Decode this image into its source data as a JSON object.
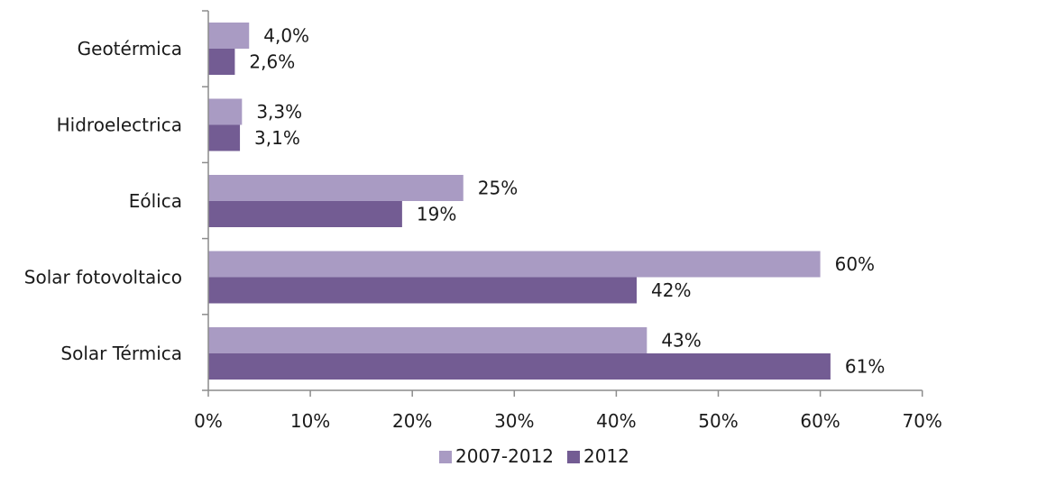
{
  "chart_data": {
    "type": "bar",
    "orientation": "horizontal",
    "title": "",
    "xlabel": "",
    "ylabel": "",
    "xlim": [
      0,
      70
    ],
    "x_ticks": [
      0,
      10,
      20,
      30,
      40,
      50,
      60,
      70
    ],
    "x_tick_labels": [
      "0%",
      "10%",
      "20%",
      "30%",
      "40%",
      "50%",
      "60%",
      "70%"
    ],
    "grid": false,
    "legend_position": "bottom",
    "categories": [
      "Geotérmica",
      "Hidroelectrica",
      "Eólica",
      "Solar fotovoltaico",
      "Solar Térmica"
    ],
    "series": [
      {
        "name": "2007-2012",
        "color": "#a99bc3",
        "values": [
          4.0,
          3.3,
          25,
          60,
          43
        ],
        "labels": [
          "4,0%",
          "3,3%",
          "25%",
          "60%",
          "43%"
        ]
      },
      {
        "name": "2012",
        "color": "#735c93",
        "values": [
          2.6,
          3.1,
          19,
          42,
          61
        ],
        "labels": [
          "2,6%",
          "3,1%",
          "19%",
          "42%",
          "61%"
        ]
      }
    ]
  }
}
